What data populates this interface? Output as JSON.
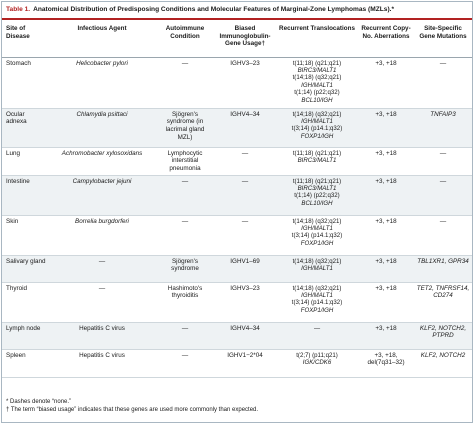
{
  "table": {
    "number": "Table 1.",
    "title": "Anatomical Distribution of Predisposing Conditions and Molecular Features of Marginal-Zone Lymphomas (MZLs).*"
  },
  "columns": [
    "Site of Disease",
    "Infectious Agent",
    "Autoimmune Condition",
    "Biased Immunoglobulin-Gene Usage†",
    "Recurrent Translocations",
    "Recurrent Copy-No. Aberrations",
    "Site-Specific Gene Mutations"
  ],
  "rows": [
    {
      "site": "Stomach",
      "agent": "Helicobacter pylori",
      "autoimmune": "—",
      "ig": "IGHV3–23",
      "translocations": [
        "t(11;18) (q21;q21)",
        "BIRC3/MALT1",
        "t(14;18) (q32;q21)",
        "IGH/MALT1",
        "t(1;14) (p22;q32)",
        "BCL10/IGH"
      ],
      "copy": "+3, +18",
      "mutations": "—"
    },
    {
      "site": "Ocular adnexa",
      "agent": "Chlamydia psittaci",
      "autoimmune": "Sjögren's syndrome (in lacrimal gland MZL)",
      "ig": "IGHV4–34",
      "translocations": [
        "t(14;18) (q32;q21)",
        "IGH/MALT1",
        "t(3;14) (p14.1;q32)",
        "FOXP1/IGH"
      ],
      "copy": "+3, +18",
      "mutations": "TNFAIP3"
    },
    {
      "site": "Lung",
      "agent": "Achromobacter xylosoxidans",
      "autoimmune": "Lymphocytic interstitial pneumonia",
      "ig": "—",
      "translocations": [
        "t(11;18) (q21;q21)",
        "BIRC3/MALT1"
      ],
      "copy": "+3, +18",
      "mutations": "—"
    },
    {
      "site": "Intestine",
      "agent": "Campylobacter jejuni",
      "autoimmune": "—",
      "ig": "—",
      "translocations": [
        "t(11;18) (q21;q21)",
        "BIRC3/MALT1",
        "t(1;14) (p22;q32)",
        "BCL10/IGH"
      ],
      "copy": "+3, +18",
      "mutations": "—"
    },
    {
      "site": "Skin",
      "agent": "Borrelia burgdorferi",
      "autoimmune": "—",
      "ig": "—",
      "translocations": [
        "t(14;18) (q32;q21)",
        "IGH/MALT1",
        "t(3;14) (p14.1;q32)",
        "FOXP1/IGH"
      ],
      "copy": "+3, +18",
      "mutations": "—"
    },
    {
      "site": "Salivary gland",
      "agent": "—",
      "autoimmune": "Sjögren's syndrome",
      "ig": "IGHV1–69",
      "translocations": [
        "t(14;18) (q32;q21)",
        "IGH/MALT1"
      ],
      "copy": "+3, +18",
      "mutations": "TBL1XR1, GPR34"
    },
    {
      "site": "Thyroid",
      "agent": "—",
      "autoimmune": "Hashimoto's thyroiditis",
      "ig": "IGHV3–23",
      "translocations": [
        "t(14;18) (q32;q21)",
        "IGH/MALT1",
        "t(3;14) (p14.1;q32)",
        "FOXP1/IGH"
      ],
      "copy": "+3, +18",
      "mutations": "TET2, TNFRSF14, CD274"
    },
    {
      "site": "Lymph node",
      "agent": "Hepatitis C virus",
      "autoimmune": "—",
      "ig": "IGHV4–34",
      "translocations": [
        "—"
      ],
      "copy": "+3, +18",
      "mutations": "KLF2, NOTCH2, PTPRD"
    },
    {
      "site": "Spleen",
      "agent": "Hepatitis C virus",
      "autoimmune": "—",
      "ig": "IGHV1−2*04",
      "translocations": [
        "t(2;7) (p11;q21)",
        "IGK/CDK6"
      ],
      "copy": "+3, +18, del(7q31–32)",
      "mutations": "KLF2, NOTCH2"
    }
  ],
  "footnotes": [
    "* Dashes denote “none.”",
    "† The term “biased usage” indicates that these genes are used more commonly than expected."
  ],
  "colors": {
    "accent": "#b22222",
    "alt_row": "#eef2f4",
    "border": "#a9b7c2"
  }
}
